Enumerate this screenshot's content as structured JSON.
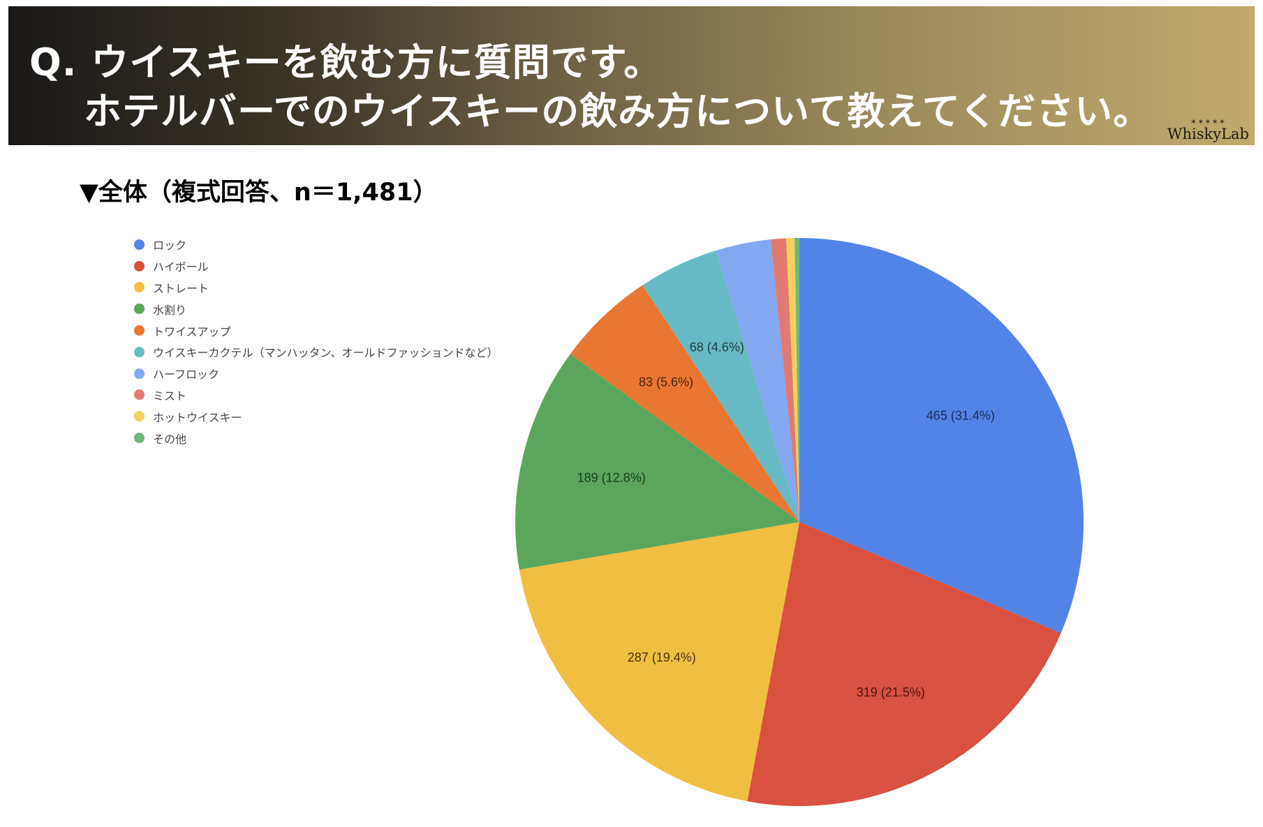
{
  "header": {
    "line1": "Q. ウイスキーを飲む方に質問です。",
    "line2": "ホテルバーでのウイスキーの飲み方について教えてください。",
    "logo_text": "WhiskyLab",
    "logo_sparkle": "✶✶✶✶✶"
  },
  "subtitle": "▼全体（複式回答、n＝1,481）",
  "chart_data": {
    "type": "pie",
    "title": "▼全体（複式回答、n＝1,481）",
    "total": 1481,
    "legend_position": "left",
    "start_angle_deg": 0,
    "direction": "clockwise",
    "categories": [
      "ロック",
      "ハイボール",
      "ストレート",
      "水割り",
      "トワイスアップ",
      "ウイスキーカクテル（マンハッタン、オールドファッションドなど）",
      "ハーフロック",
      "ミスト",
      "ホットウイスキー",
      "その他"
    ],
    "values": [
      465,
      319,
      287,
      189,
      83,
      68,
      46,
      13,
      7,
      4
    ],
    "percentages": [
      31.4,
      21.5,
      19.4,
      12.8,
      5.6,
      4.6,
      3.1,
      0.9,
      0.5,
      0.3
    ],
    "labels": [
      "465 (31.4%)",
      "319 (21.5%)",
      "287 (19.4%)",
      "189 (12.8%)",
      "83 (5.6%)",
      "68 (4.6%)",
      "",
      "",
      "",
      ""
    ],
    "colors": [
      "#5284e8",
      "#d95140",
      "#f0be41",
      "#5ba65d",
      "#ea7633",
      "#67bac5",
      "#83a7f0",
      "#e27a72",
      "#f5d15c",
      "#72b67e"
    ],
    "label_colors": [
      "#1c2b55",
      "#4a1510",
      "#4a3410",
      "#1c3a1d",
      "#4a2410",
      "#1c3a40",
      "",
      "",
      "",
      ""
    ]
  },
  "legend": {
    "items": [
      {
        "label": "ロック",
        "color": "#5284e8"
      },
      {
        "label": "ハイボール",
        "color": "#d95140"
      },
      {
        "label": "ストレート",
        "color": "#f0be41"
      },
      {
        "label": "水割り",
        "color": "#5ba65d"
      },
      {
        "label": "トワイスアップ",
        "color": "#ea7633"
      },
      {
        "label": "ウイスキーカクテル（マンハッタン、オールドファッションドなど）",
        "color": "#67bac5"
      },
      {
        "label": "ハーフロック",
        "color": "#83a7f0"
      },
      {
        "label": "ミスト",
        "color": "#e27a72"
      },
      {
        "label": "ホットウイスキー",
        "color": "#f5d15c"
      },
      {
        "label": "その他",
        "color": "#72b67e"
      }
    ]
  }
}
